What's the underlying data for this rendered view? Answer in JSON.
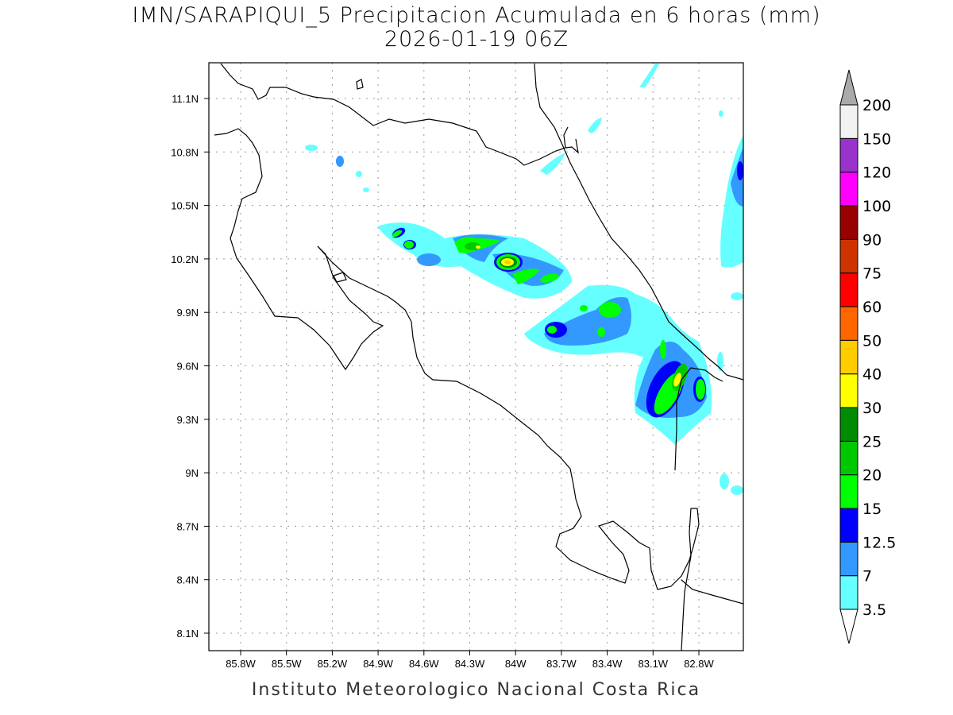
{
  "title": "IMN/SARAPIQUI_5 Precipitacion Acumulada en 6 horas (mm)",
  "subtitle": "2026-01-19 06Z",
  "credit": "Instituto Meteorologico Nacional Costa Rica",
  "map": {
    "region": "Costa Rica",
    "lon_ticks": [
      "85.8W",
      "85.5W",
      "85.2W",
      "84.9W",
      "84.6W",
      "84.3W",
      "84W",
      "83.7W",
      "83.4W",
      "83.1W",
      "82.8W"
    ],
    "lat_ticks": [
      "11.1N",
      "10.8N",
      "10.5N",
      "10.2N",
      "9.9N",
      "9.6N",
      "9.3N",
      "9N",
      "8.7N",
      "8.4N",
      "8.1N"
    ],
    "grid": "dotted"
  },
  "colorbar": {
    "labels": [
      "3.5",
      "7",
      "12.5",
      "15",
      "20",
      "25",
      "30",
      "40",
      "50",
      "60",
      "75",
      "90",
      "100",
      "120",
      "150",
      "200"
    ],
    "colors": [
      "#66ffff",
      "#3399ff",
      "#0000ff",
      "#00ff00",
      "#00c800",
      "#008c00",
      "#ffff00",
      "#ffcc00",
      "#ff6600",
      "#ff0000",
      "#cc3300",
      "#990000",
      "#ff00ff",
      "#9933cc",
      "#f2f2f2"
    ],
    "below_color": "#ffffff",
    "above_color": "#aaaaaa"
  }
}
